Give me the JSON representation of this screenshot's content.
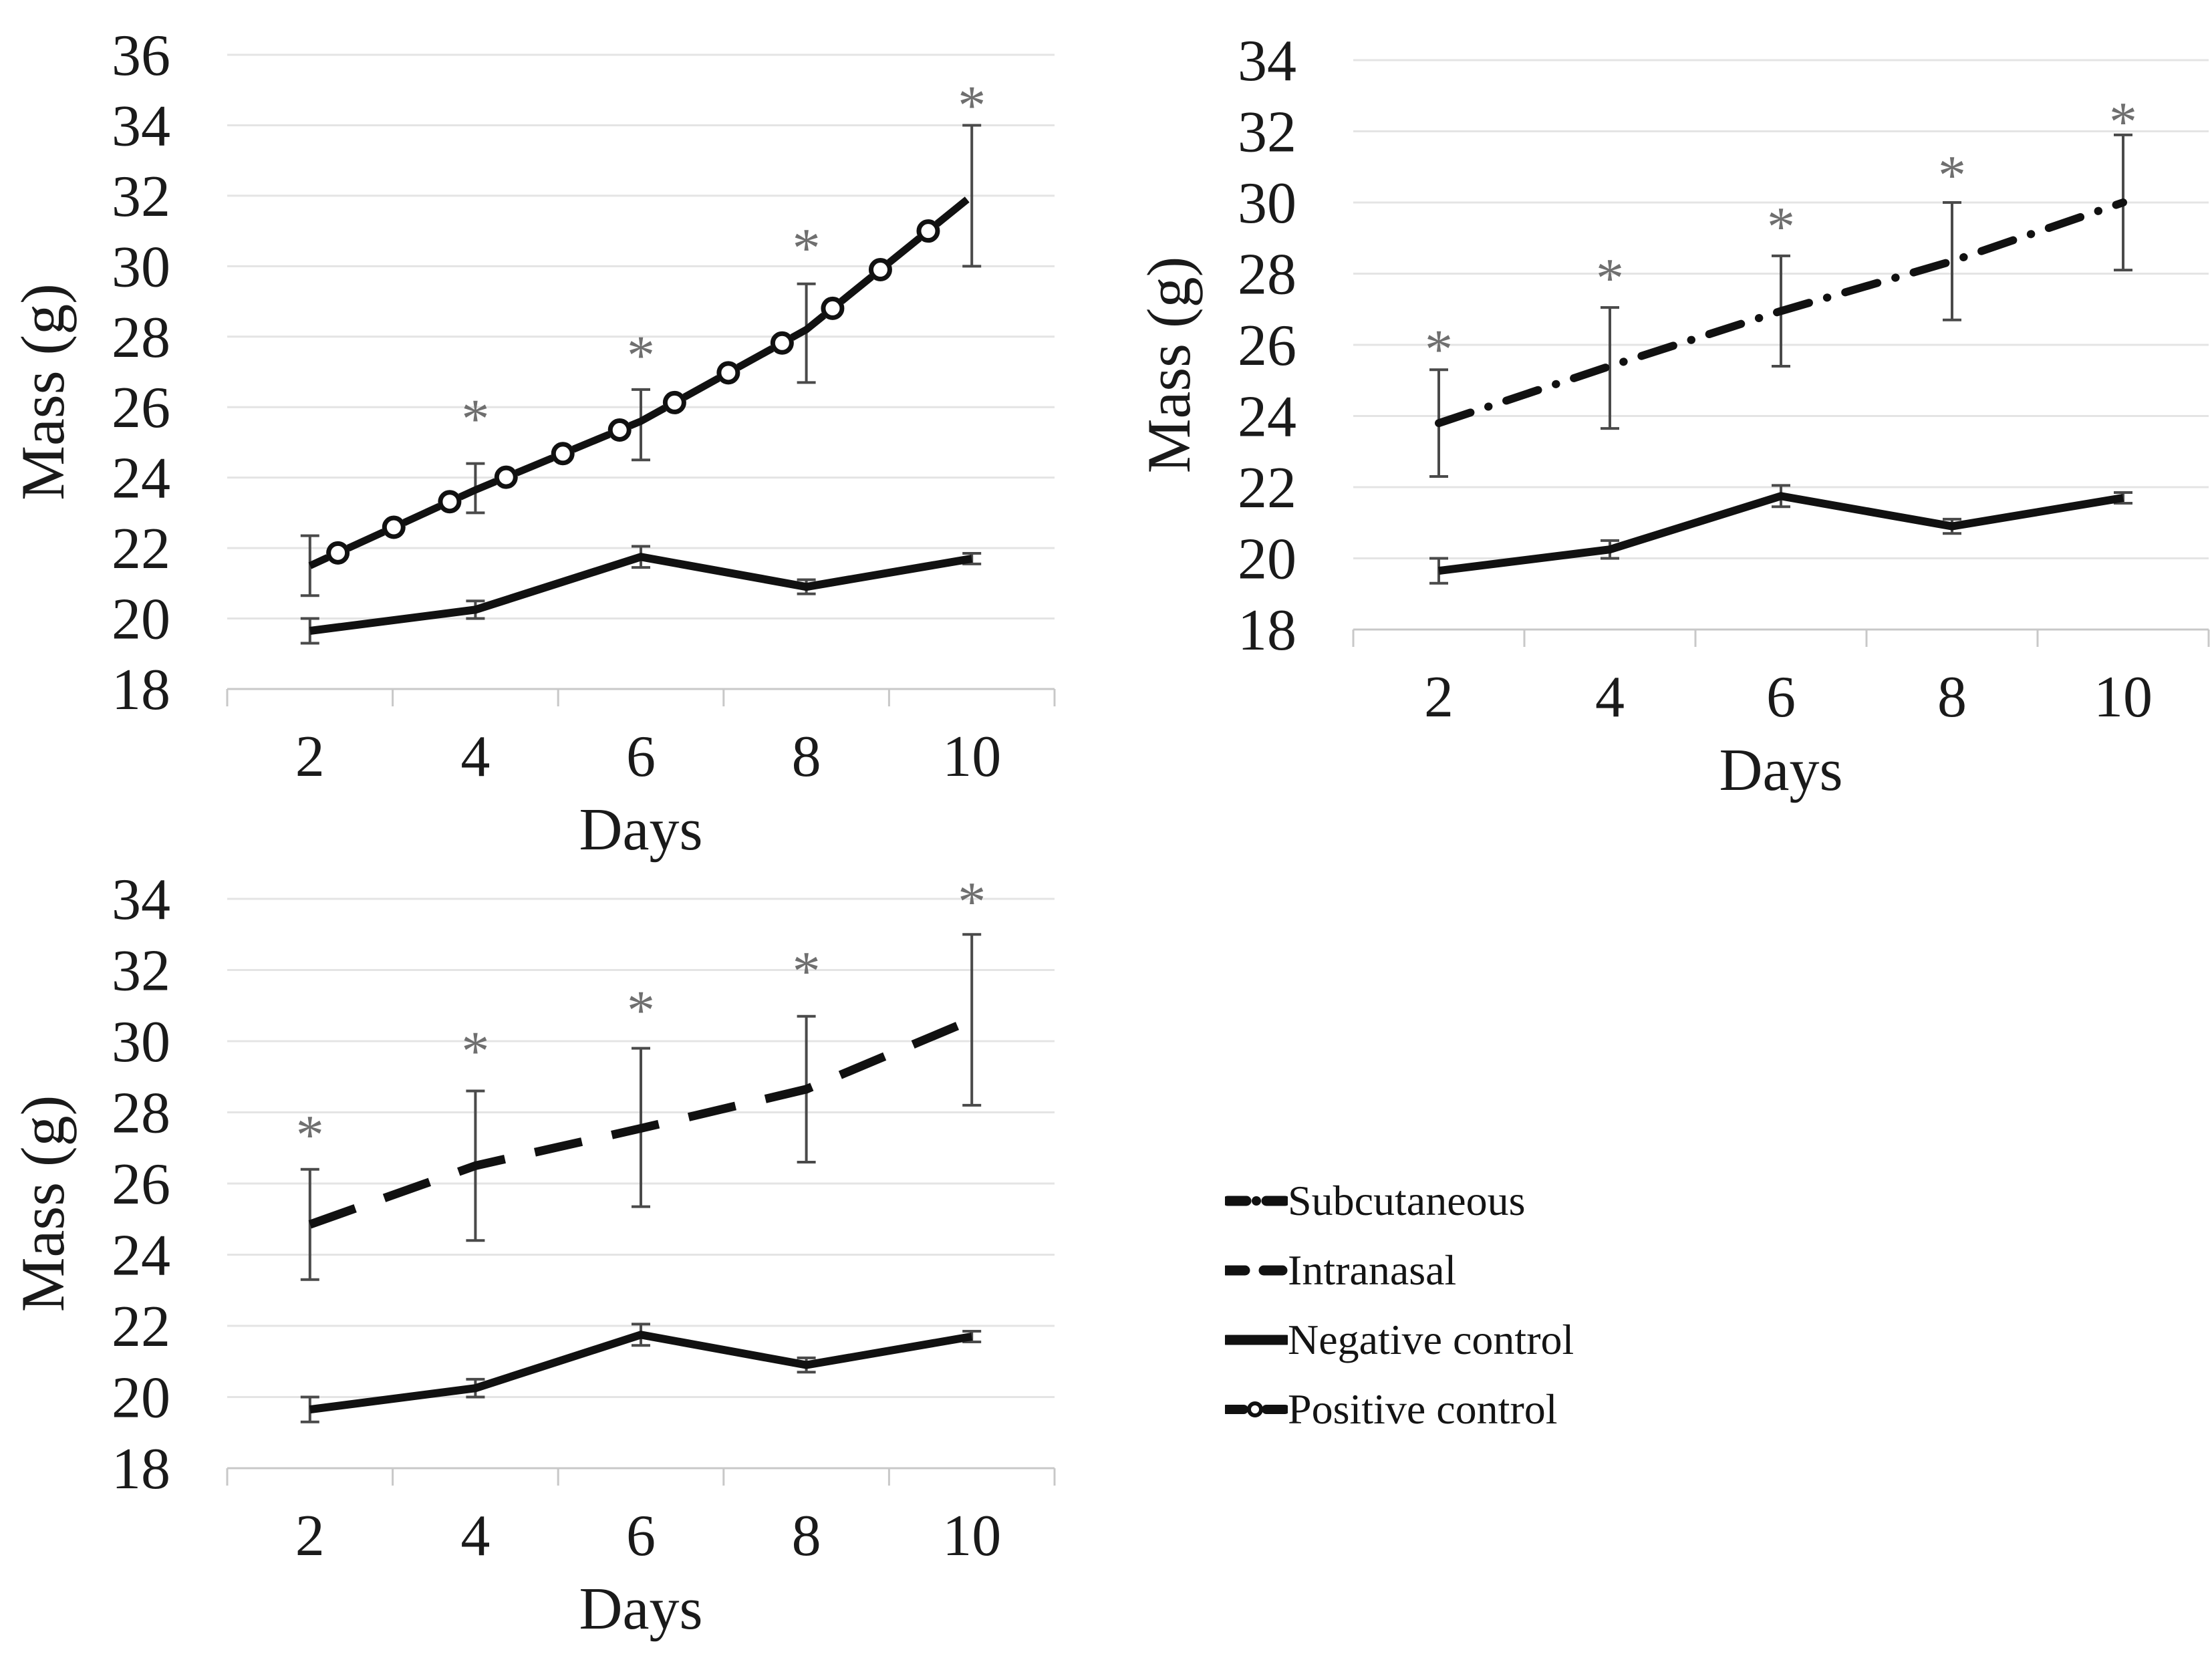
{
  "colors": {
    "line": "#111111",
    "error_bar": "#4a4a4a",
    "gridline": "#e4e4e4",
    "axis": "#c8c8c8",
    "asterisk": "#6f6f6f",
    "text": "#1a1a1a",
    "background": "#ffffff"
  },
  "legend": {
    "items": [
      {
        "label": "Subcutaneous",
        "style": "dash-dot"
      },
      {
        "label": "Intranasal",
        "style": "dash"
      },
      {
        "label": "Negative control",
        "style": "solid"
      },
      {
        "label": "Positive control",
        "style": "dash-circle"
      }
    ]
  },
  "chart_data": [
    {
      "id": "top-left",
      "type": "line",
      "xlabel": "Days",
      "ylabel": "Mass (g)",
      "x": [
        2,
        4,
        6,
        8,
        10
      ],
      "ylim": [
        18,
        36
      ],
      "yticks": [
        18,
        20,
        22,
        24,
        26,
        28,
        30,
        32,
        34,
        36
      ],
      "grid": true,
      "legend_position": "none",
      "series": [
        {
          "name": "Positive control",
          "style": "dash-circle",
          "values": [
            21.5,
            23.65,
            25.6,
            28.2,
            32.0
          ],
          "err_lo": [
            20.65,
            23.0,
            24.5,
            26.7,
            30.0
          ],
          "err_hi": [
            22.35,
            24.4,
            26.5,
            29.5,
            34.0
          ],
          "asterisk_y": [
            null,
            25.9,
            27.7,
            30.75,
            34.8
          ]
        },
        {
          "name": "Negative control",
          "style": "solid",
          "values": [
            19.65,
            20.25,
            21.75,
            20.9,
            21.7
          ],
          "err_lo": [
            19.3,
            20.0,
            21.45,
            20.7,
            21.55
          ],
          "err_hi": [
            20.0,
            20.5,
            22.05,
            21.1,
            21.85
          ],
          "asterisk_y": [
            null,
            null,
            null,
            null,
            null
          ]
        }
      ]
    },
    {
      "id": "top-right",
      "type": "line",
      "xlabel": "Days",
      "ylabel": "Mass (g)",
      "x": [
        2,
        4,
        6,
        8,
        10
      ],
      "ylim": [
        18,
        34
      ],
      "yticks": [
        18,
        20,
        22,
        24,
        26,
        28,
        30,
        32,
        34
      ],
      "grid": true,
      "legend_position": "none",
      "series": [
        {
          "name": "Subcutaneous",
          "style": "dash-dot",
          "values": [
            23.8,
            25.4,
            26.95,
            28.35,
            30.0
          ],
          "err_lo": [
            22.3,
            23.65,
            25.4,
            26.7,
            28.1
          ],
          "err_hi": [
            25.3,
            27.05,
            28.5,
            30.0,
            31.9
          ],
          "asterisk_y": [
            26.1,
            28.1,
            29.55,
            31.0,
            32.5
          ]
        },
        {
          "name": "Negative control",
          "style": "solid",
          "values": [
            19.65,
            20.25,
            21.75,
            20.9,
            21.7
          ],
          "err_lo": [
            19.3,
            20.0,
            21.45,
            20.7,
            21.55
          ],
          "err_hi": [
            20.0,
            20.5,
            22.05,
            21.1,
            21.85
          ],
          "asterisk_y": [
            null,
            null,
            null,
            null,
            null
          ]
        }
      ]
    },
    {
      "id": "bottom-left",
      "type": "line",
      "xlabel": "Days",
      "ylabel": "Mass (g)",
      "x": [
        2,
        4,
        6,
        8,
        10
      ],
      "ylim": [
        18,
        34
      ],
      "yticks": [
        18,
        20,
        22,
        24,
        26,
        28,
        30,
        32,
        34
      ],
      "grid": true,
      "legend_position": "none",
      "series": [
        {
          "name": "Intranasal",
          "style": "dash",
          "values": [
            24.85,
            26.5,
            27.55,
            28.65,
            30.6
          ],
          "err_lo": [
            23.3,
            24.4,
            25.35,
            26.6,
            28.2
          ],
          "err_hi": [
            26.4,
            28.6,
            29.8,
            30.7,
            33.0
          ],
          "asterisk_y": [
            27.6,
            29.95,
            31.1,
            32.2,
            34.15
          ]
        },
        {
          "name": "Negative control",
          "style": "solid",
          "values": [
            19.65,
            20.25,
            21.75,
            20.9,
            21.7
          ],
          "err_lo": [
            19.3,
            20.0,
            21.45,
            20.7,
            21.55
          ],
          "err_hi": [
            20.0,
            20.5,
            22.05,
            21.1,
            21.85
          ],
          "asterisk_y": [
            null,
            null,
            null,
            null,
            null
          ]
        }
      ]
    }
  ]
}
